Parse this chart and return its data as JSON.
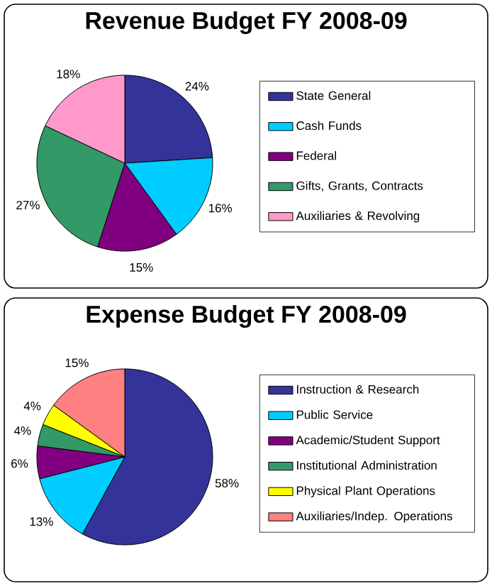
{
  "chart_data": [
    {
      "type": "pie",
      "title": "Revenue Budget FY 2008-09",
      "categories": [
        "State General",
        "Cash Funds",
        "Federal",
        "Gifts, Grants, Contracts",
        "Auxiliaries & Revolving"
      ],
      "values": [
        24,
        16,
        15,
        27,
        18
      ],
      "value_labels": [
        "24%",
        "16%",
        "15%",
        "27%",
        "18%"
      ],
      "colors": [
        "#333399",
        "#00ccff",
        "#800080",
        "#339966",
        "#ff99cc"
      ],
      "legend": "right"
    },
    {
      "type": "pie",
      "title": "Expense Budget FY 2008-09",
      "categories": [
        "Instruction & Research",
        "Public Service",
        "Academic/Student Support",
        "Institutional Administration",
        "Physical Plant Operations",
        "Auxiliaries/Indep. Operations"
      ],
      "values": [
        58,
        13,
        6,
        4,
        4,
        15
      ],
      "value_labels": [
        "58%",
        "13%",
        "6%",
        "4%",
        "4%",
        "15%"
      ],
      "colors": [
        "#333399",
        "#00ccff",
        "#800080",
        "#339966",
        "#ffff00",
        "#ff8080"
      ],
      "legend": "right"
    }
  ]
}
